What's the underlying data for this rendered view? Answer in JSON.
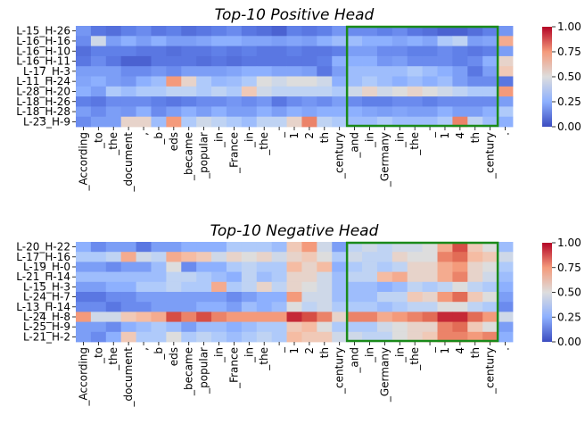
{
  "colors": {
    "cmap": [
      "#3b4cc0",
      "#dddddd",
      "#b40426"
    ],
    "highlight_box": "#1a8a1a"
  },
  "chart_data": [
    {
      "type": "heatmap",
      "title": "Top-10 Positive Head",
      "rows": [
        "L-15_H-26",
        "L-16_H-16",
        "L-16_H-10",
        "L-16_H-11",
        "L-17_H-3",
        "L-11_H-24",
        "L-28_H-20",
        "L-18_H-26",
        "L-18_H-28",
        "L-23_H-9"
      ],
      "columns": [
        "_According",
        "_to",
        "_the",
        "_document",
        ",",
        "_b",
        "eds",
        "_became",
        "_popular",
        "_in",
        "_France",
        "_in",
        "_the",
        "_",
        "1",
        "2",
        "th",
        "_century",
        "_and",
        "_in",
        "_Germany",
        "_in",
        "_the",
        "_",
        "1",
        "4",
        "th",
        "_century",
        "."
      ],
      "values": [
        [
          0.18,
          0.1,
          0.08,
          0.12,
          0.15,
          0.1,
          0.12,
          0.08,
          0.1,
          0.12,
          0.15,
          0.1,
          0.08,
          0.05,
          0.12,
          0.1,
          0.12,
          0.18,
          0.15,
          0.15,
          0.12,
          0.15,
          0.1,
          0.08,
          0.05,
          0.05,
          0.08,
          0.12,
          0.18
        ],
        [
          0.15,
          0.45,
          0.2,
          0.25,
          0.2,
          0.25,
          0.2,
          0.2,
          0.22,
          0.25,
          0.25,
          0.22,
          0.22,
          0.2,
          0.22,
          0.2,
          0.25,
          0.3,
          0.3,
          0.25,
          0.25,
          0.22,
          0.25,
          0.22,
          0.35,
          0.4,
          0.2,
          0.22,
          0.7
        ],
        [
          0.08,
          0.12,
          0.12,
          0.12,
          0.1,
          0.1,
          0.08,
          0.1,
          0.1,
          0.12,
          0.1,
          0.12,
          0.1,
          0.1,
          0.12,
          0.1,
          0.1,
          0.12,
          0.2,
          0.2,
          0.15,
          0.15,
          0.12,
          0.12,
          0.15,
          0.12,
          0.1,
          0.12,
          0.2
        ],
        [
          0.1,
          0.15,
          0.1,
          0.05,
          0.05,
          0.1,
          0.1,
          0.1,
          0.08,
          0.1,
          0.08,
          0.1,
          0.1,
          0.1,
          0.1,
          0.1,
          0.12,
          0.25,
          0.25,
          0.25,
          0.18,
          0.2,
          0.15,
          0.15,
          0.15,
          0.12,
          0.15,
          0.25,
          0.55
        ],
        [
          0.2,
          0.2,
          0.2,
          0.15,
          0.15,
          0.18,
          0.15,
          0.2,
          0.2,
          0.2,
          0.22,
          0.25,
          0.25,
          0.22,
          0.22,
          0.2,
          0.1,
          0.2,
          0.3,
          0.3,
          0.3,
          0.3,
          0.35,
          0.3,
          0.25,
          0.2,
          0.1,
          0.2,
          0.6
        ],
        [
          0.22,
          0.25,
          0.2,
          0.18,
          0.25,
          0.3,
          0.75,
          0.55,
          0.35,
          0.28,
          0.3,
          0.35,
          0.5,
          0.45,
          0.5,
          0.5,
          0.45,
          0.25,
          0.3,
          0.35,
          0.3,
          0.25,
          0.3,
          0.25,
          0.3,
          0.2,
          0.15,
          0.15,
          0.1
        ],
        [
          0.25,
          0.2,
          0.35,
          0.3,
          0.35,
          0.35,
          0.4,
          0.4,
          0.35,
          0.4,
          0.35,
          0.6,
          0.45,
          0.4,
          0.4,
          0.4,
          0.4,
          0.35,
          0.45,
          0.55,
          0.45,
          0.5,
          0.55,
          0.5,
          0.45,
          0.4,
          0.35,
          0.35,
          0.75
        ],
        [
          0.12,
          0.1,
          0.15,
          0.15,
          0.15,
          0.12,
          0.1,
          0.12,
          0.15,
          0.15,
          0.18,
          0.15,
          0.18,
          0.1,
          0.15,
          0.18,
          0.15,
          0.2,
          0.15,
          0.12,
          0.12,
          0.15,
          0.15,
          0.12,
          0.15,
          0.15,
          0.15,
          0.15,
          0.2
        ],
        [
          0.2,
          0.15,
          0.2,
          0.18,
          0.25,
          0.15,
          0.2,
          0.25,
          0.2,
          0.25,
          0.2,
          0.2,
          0.25,
          0.2,
          0.25,
          0.22,
          0.25,
          0.25,
          0.25,
          0.22,
          0.2,
          0.22,
          0.2,
          0.2,
          0.25,
          0.2,
          0.2,
          0.25,
          0.35
        ],
        [
          0.15,
          0.2,
          0.2,
          0.55,
          0.55,
          0.3,
          0.75,
          0.35,
          0.45,
          0.4,
          0.35,
          0.3,
          0.4,
          0.4,
          0.55,
          0.8,
          0.4,
          0.35,
          0.3,
          0.3,
          0.35,
          0.3,
          0.3,
          0.3,
          0.35,
          0.8,
          0.4,
          0.3,
          0.25
        ]
      ],
      "highlight": {
        "start_col": 18,
        "end_col": 27
      },
      "colorbar_range": [
        0.0,
        1.0
      ],
      "colorbar_ticks": [
        "0.00",
        "0.25",
        "0.50",
        "0.75",
        "1.00"
      ]
    },
    {
      "type": "heatmap",
      "title": "Top-10 Negative Head",
      "rows": [
        "L-20_H-22",
        "L-17_H-16",
        "L-19_H-0",
        "L-21_H-14",
        "L-15_H-3",
        "L-24_H-7",
        "L-13_H-14",
        "L-24_H-8",
        "L-25_H-9",
        "L-21_H-2"
      ],
      "columns": [
        "_According",
        "_to",
        "_the",
        "_document",
        ",",
        "_b",
        "eds",
        "_became",
        "_popular",
        "_in",
        "_France",
        "_in",
        "_the",
        "_",
        "1",
        "2",
        "th",
        "_century",
        "_and",
        "_in",
        "_Germany",
        "_in",
        "_the",
        "_",
        "1",
        "4",
        "th",
        "_century",
        "."
      ],
      "values": [
        [
          0.25,
          0.15,
          0.2,
          0.2,
          0.1,
          0.2,
          0.2,
          0.25,
          0.25,
          0.25,
          0.35,
          0.35,
          0.35,
          0.3,
          0.6,
          0.75,
          0.45,
          0.2,
          0.4,
          0.45,
          0.4,
          0.45,
          0.45,
          0.5,
          0.7,
          0.9,
          0.6,
          0.5,
          0.3
        ],
        [
          0.35,
          0.35,
          0.4,
          0.7,
          0.45,
          0.4,
          0.7,
          0.65,
          0.6,
          0.45,
          0.55,
          0.5,
          0.55,
          0.45,
          0.55,
          0.6,
          0.5,
          0.35,
          0.45,
          0.4,
          0.4,
          0.55,
          0.5,
          0.5,
          0.8,
          0.85,
          0.65,
          0.6,
          0.45
        ],
        [
          0.2,
          0.2,
          0.15,
          0.2,
          0.2,
          0.3,
          0.5,
          0.15,
          0.25,
          0.25,
          0.35,
          0.4,
          0.35,
          0.35,
          0.65,
          0.55,
          0.65,
          0.25,
          0.35,
          0.4,
          0.35,
          0.4,
          0.55,
          0.55,
          0.7,
          0.75,
          0.55,
          0.5,
          0.35
        ],
        [
          0.3,
          0.3,
          0.3,
          0.3,
          0.3,
          0.3,
          0.4,
          0.4,
          0.35,
          0.3,
          0.25,
          0.4,
          0.3,
          0.35,
          0.55,
          0.55,
          0.45,
          0.3,
          0.4,
          0.4,
          0.65,
          0.7,
          0.55,
          0.55,
          0.7,
          0.8,
          0.55,
          0.45,
          0.3
        ],
        [
          0.2,
          0.2,
          0.25,
          0.25,
          0.35,
          0.35,
          0.4,
          0.35,
          0.35,
          0.7,
          0.35,
          0.4,
          0.55,
          0.4,
          0.55,
          0.5,
          0.45,
          0.3,
          0.3,
          0.3,
          0.25,
          0.3,
          0.4,
          0.35,
          0.4,
          0.5,
          0.4,
          0.35,
          0.25
        ],
        [
          0.1,
          0.1,
          0.15,
          0.15,
          0.2,
          0.2,
          0.2,
          0.2,
          0.2,
          0.2,
          0.15,
          0.2,
          0.25,
          0.25,
          0.75,
          0.45,
          0.45,
          0.3,
          0.3,
          0.3,
          0.4,
          0.4,
          0.6,
          0.55,
          0.75,
          0.85,
          0.6,
          0.5,
          0.2
        ],
        [
          0.15,
          0.15,
          0.1,
          0.15,
          0.15,
          0.2,
          0.2,
          0.2,
          0.25,
          0.25,
          0.2,
          0.3,
          0.25,
          0.3,
          0.5,
          0.4,
          0.45,
          0.35,
          0.35,
          0.35,
          0.3,
          0.35,
          0.4,
          0.4,
          0.5,
          0.5,
          0.4,
          0.35,
          0.15
        ],
        [
          0.75,
          0.45,
          0.45,
          0.6,
          0.65,
          0.7,
          0.9,
          0.8,
          0.9,
          0.8,
          0.75,
          0.75,
          0.75,
          0.75,
          0.95,
          0.9,
          0.8,
          0.55,
          0.8,
          0.8,
          0.7,
          0.75,
          0.8,
          0.85,
          0.95,
          0.95,
          0.85,
          0.75,
          0.45
        ],
        [
          0.2,
          0.2,
          0.15,
          0.25,
          0.3,
          0.35,
          0.3,
          0.2,
          0.3,
          0.3,
          0.25,
          0.3,
          0.35,
          0.35,
          0.6,
          0.65,
          0.5,
          0.35,
          0.35,
          0.35,
          0.45,
          0.5,
          0.55,
          0.55,
          0.8,
          0.85,
          0.6,
          0.5,
          0.2
        ],
        [
          0.2,
          0.15,
          0.25,
          0.6,
          0.35,
          0.35,
          0.5,
          0.35,
          0.4,
          0.35,
          0.3,
          0.35,
          0.4,
          0.35,
          0.65,
          0.6,
          0.6,
          0.45,
          0.45,
          0.4,
          0.4,
          0.5,
          0.55,
          0.6,
          0.8,
          0.8,
          0.75,
          0.8,
          0.25
        ]
      ],
      "highlight": {
        "start_col": 18,
        "end_col": 27
      },
      "colorbar_range": [
        0.0,
        1.0
      ],
      "colorbar_ticks": [
        "0.00",
        "0.25",
        "0.50",
        "0.75",
        "1.00"
      ]
    }
  ]
}
